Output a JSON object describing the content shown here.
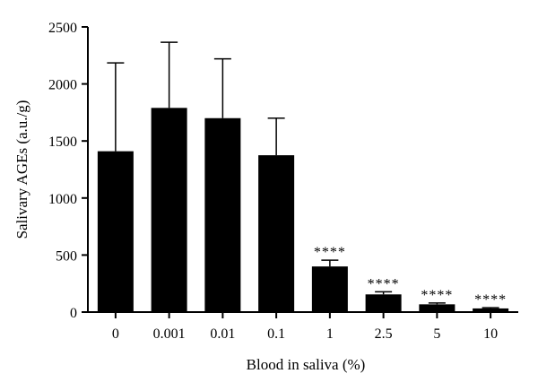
{
  "chart_data": {
    "type": "bar",
    "categories": [
      "0",
      "0.001",
      "0.01",
      "0.1",
      "1",
      "2.5",
      "5",
      "10"
    ],
    "values": [
      1410,
      1790,
      1700,
      1375,
      400,
      155,
      68,
      32
    ],
    "error_upper": [
      2185,
      2365,
      2220,
      1700,
      455,
      178,
      80,
      38
    ],
    "significance": [
      "",
      "",
      "",
      "",
      "****",
      "****",
      "****",
      "****"
    ],
    "xlabel": "Blood in saliva (%)",
    "ylabel": "Salivary AGEs (a.u./g)",
    "ylim": [
      0,
      2500
    ],
    "yticks": [
      0,
      500,
      1000,
      1500,
      2000,
      2500
    ],
    "grid": false,
    "colors": {
      "bar": "#000000",
      "axis": "#000000",
      "background": "#ffffff"
    }
  }
}
